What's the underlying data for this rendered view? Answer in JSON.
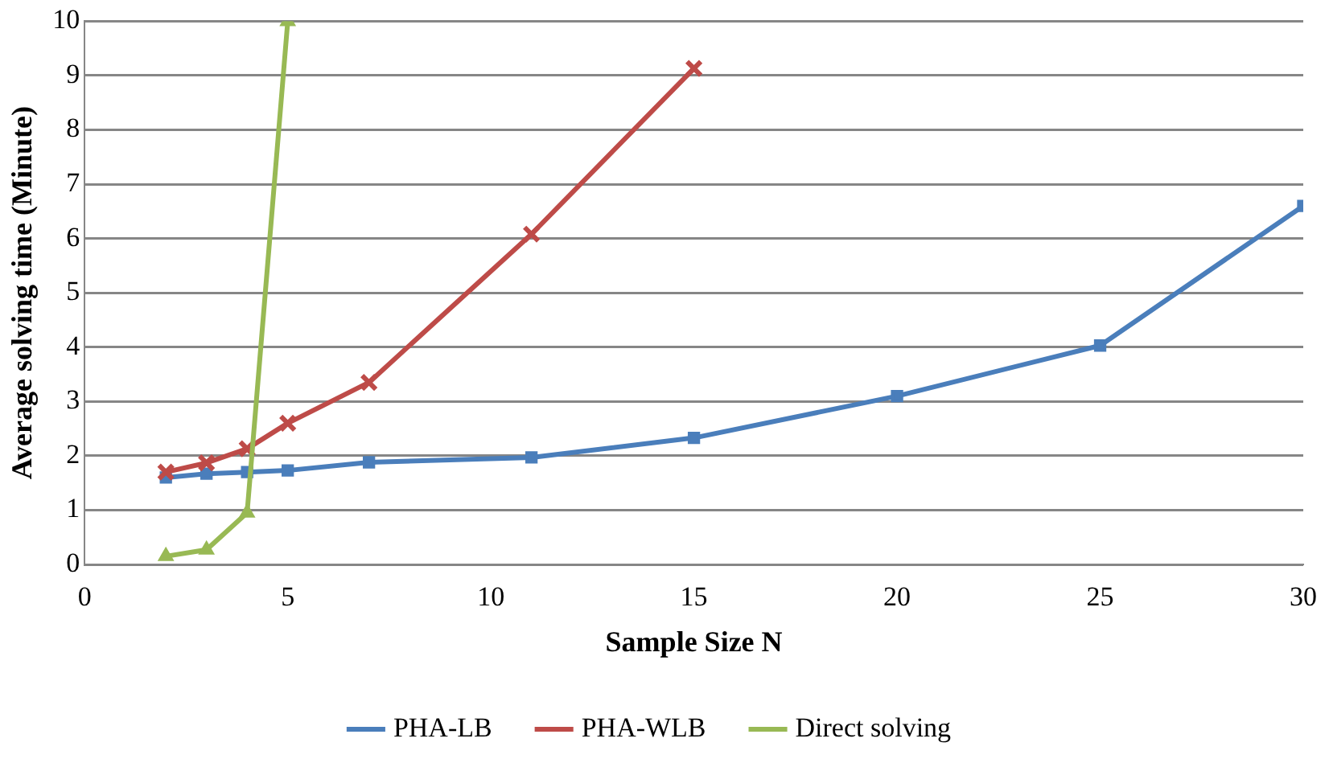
{
  "chart_data": {
    "type": "line",
    "xlabel": "Sample Size N",
    "ylabel": "Average solving time (Minute)",
    "xlim": [
      0,
      30
    ],
    "xticks": [
      0,
      5,
      10,
      15,
      20,
      25,
      30
    ],
    "ylim": [
      0,
      10
    ],
    "yticks": [
      0,
      1,
      2,
      3,
      4,
      5,
      6,
      7,
      8,
      9,
      10
    ],
    "grid": "y",
    "legend": "bottom",
    "series": [
      {
        "name": "PHA-LB",
        "color": "#4a7ebb",
        "marker": "square",
        "x": [
          2,
          3,
          4,
          5,
          7,
          11,
          15,
          20,
          25,
          30
        ],
        "values": [
          1.6,
          1.67,
          1.7,
          1.73,
          1.88,
          1.97,
          2.33,
          3.1,
          4.03,
          6.6
        ]
      },
      {
        "name": "PHA-WLB",
        "color": "#be4b48",
        "marker": "cross",
        "x": [
          2,
          3,
          4,
          5,
          7,
          11,
          15
        ],
        "values": [
          1.7,
          1.87,
          2.13,
          2.6,
          3.35,
          6.08,
          9.13
        ]
      },
      {
        "name": "Direct solving",
        "color": "#98b954",
        "marker": "triangle",
        "x": [
          2,
          3,
          4,
          5
        ],
        "values": [
          0.15,
          0.27,
          0.95,
          10
        ]
      }
    ]
  }
}
